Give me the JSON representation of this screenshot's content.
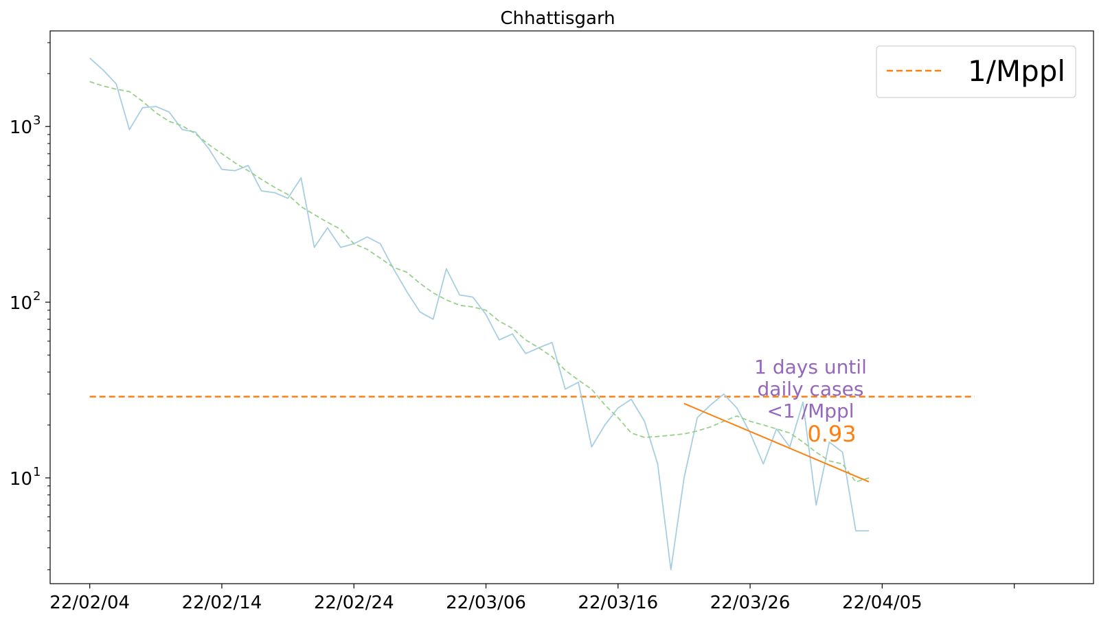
{
  "chart_data": {
    "type": "line",
    "title": "Chhattisgarh",
    "xlabel": "",
    "ylabel": "",
    "y_scale": "log",
    "ylim": [
      2.5,
      3500
    ],
    "xlim": [
      "2022-02-01",
      "2022-04-21"
    ],
    "x_tick_labels": [
      "22/02/04",
      "22/02/14",
      "22/02/24",
      "22/03/06",
      "22/03/16",
      "22/03/26",
      "22/04/05"
    ],
    "x_ticks": [
      "2022-02-04",
      "2022-02-14",
      "2022-02-24",
      "2022-03-06",
      "2022-03-16",
      "2022-03-26",
      "2022-04-05",
      "2022-04-15"
    ],
    "y_tick_labels": [
      {
        "value": 10,
        "base": "10",
        "exp": "1"
      },
      {
        "value": 100,
        "base": "10",
        "exp": "2"
      },
      {
        "value": 1000,
        "base": "10",
        "exp": "3"
      }
    ],
    "grid": false,
    "legend_placement": "top-right",
    "series": [
      {
        "role": "daily",
        "color": "#a6cee3",
        "x": [
          "2022-02-04",
          "2022-02-05",
          "2022-02-06",
          "2022-02-07",
          "2022-02-08",
          "2022-02-09",
          "2022-02-10",
          "2022-02-11",
          "2022-02-12",
          "2022-02-13",
          "2022-02-14",
          "2022-02-15",
          "2022-02-16",
          "2022-02-17",
          "2022-02-18",
          "2022-02-19",
          "2022-02-20",
          "2022-02-21",
          "2022-02-22",
          "2022-02-23",
          "2022-02-24",
          "2022-02-25",
          "2022-02-26",
          "2022-02-27",
          "2022-02-28",
          "2022-03-01",
          "2022-03-02",
          "2022-03-03",
          "2022-03-04",
          "2022-03-05",
          "2022-03-06",
          "2022-03-07",
          "2022-03-08",
          "2022-03-09",
          "2022-03-10",
          "2022-03-11",
          "2022-03-12",
          "2022-03-13",
          "2022-03-14",
          "2022-03-15",
          "2022-03-16",
          "2022-03-17",
          "2022-03-18",
          "2022-03-19",
          "2022-03-20",
          "2022-03-21",
          "2022-03-22",
          "2022-03-23",
          "2022-03-24",
          "2022-03-25",
          "2022-03-26",
          "2022-03-27",
          "2022-03-28",
          "2022-03-29",
          "2022-03-30",
          "2022-03-31",
          "2022-04-01",
          "2022-04-02",
          "2022-04-03",
          "2022-04-04"
        ],
        "values": [
          2450,
          2100,
          1750,
          960,
          1280,
          1300,
          1210,
          960,
          930,
          750,
          570,
          560,
          600,
          430,
          420,
          390,
          510,
          205,
          265,
          205,
          215,
          235,
          215,
          155,
          115,
          88,
          80,
          155,
          110,
          107,
          85,
          61,
          66,
          51,
          55,
          59,
          32,
          35,
          15,
          20,
          25,
          28,
          21,
          12,
          3,
          10,
          22,
          26,
          30,
          25,
          18,
          12,
          19,
          15,
          27,
          7,
          16,
          14,
          5,
          5
        ]
      },
      {
        "role": "smoothed",
        "color": "#98d08a",
        "dashed": true,
        "x": [
          "2022-02-04",
          "2022-02-05",
          "2022-02-06",
          "2022-02-07",
          "2022-02-08",
          "2022-02-09",
          "2022-02-10",
          "2022-02-11",
          "2022-02-12",
          "2022-02-13",
          "2022-02-14",
          "2022-02-15",
          "2022-02-16",
          "2022-02-17",
          "2022-02-18",
          "2022-02-19",
          "2022-02-20",
          "2022-02-21",
          "2022-02-22",
          "2022-02-23",
          "2022-02-24",
          "2022-02-25",
          "2022-02-26",
          "2022-02-27",
          "2022-02-28",
          "2022-03-01",
          "2022-03-02",
          "2022-03-03",
          "2022-03-04",
          "2022-03-05",
          "2022-03-06",
          "2022-03-07",
          "2022-03-08",
          "2022-03-09",
          "2022-03-10",
          "2022-03-11",
          "2022-03-12",
          "2022-03-13",
          "2022-03-14",
          "2022-03-15",
          "2022-03-16",
          "2022-03-17",
          "2022-03-18",
          "2022-03-19",
          "2022-03-20",
          "2022-03-21",
          "2022-03-22",
          "2022-03-23",
          "2022-03-24",
          "2022-03-25",
          "2022-03-26",
          "2022-03-27",
          "2022-03-28",
          "2022-03-29",
          "2022-03-30",
          "2022-03-31",
          "2022-04-01",
          "2022-04-02",
          "2022-04-03",
          "2022-04-04"
        ],
        "values": [
          1800,
          1700,
          1630,
          1580,
          1390,
          1200,
          1070,
          1010,
          910,
          790,
          700,
          620,
          560,
          500,
          450,
          410,
          350,
          315,
          285,
          260,
          215,
          200,
          178,
          158,
          148,
          128,
          113,
          103,
          96,
          94,
          90,
          78,
          71,
          61,
          55,
          49,
          41,
          36,
          32,
          26,
          22,
          18,
          17,
          17.2,
          17.5,
          17.8,
          18.5,
          19.5,
          21,
          22.5,
          21,
          20,
          19,
          18,
          16,
          14,
          12.5,
          12,
          9.5,
          10
        ]
      }
    ],
    "reference_line": {
      "label": "1/Mppl",
      "value": 29,
      "color": "#ff7f0e",
      "x": [
        "2022-02-04",
        "2022-04-12"
      ]
    },
    "trend_line": {
      "color": "#ff7f0e",
      "x": [
        "2022-03-21",
        "2022-04-04"
      ],
      "values": [
        26.5,
        9.5
      ],
      "label": "0.93"
    },
    "annotation": {
      "lines": [
        "1 days until",
        "daily cases",
        "<1 /Mppl"
      ],
      "color": "#9467bd"
    }
  }
}
